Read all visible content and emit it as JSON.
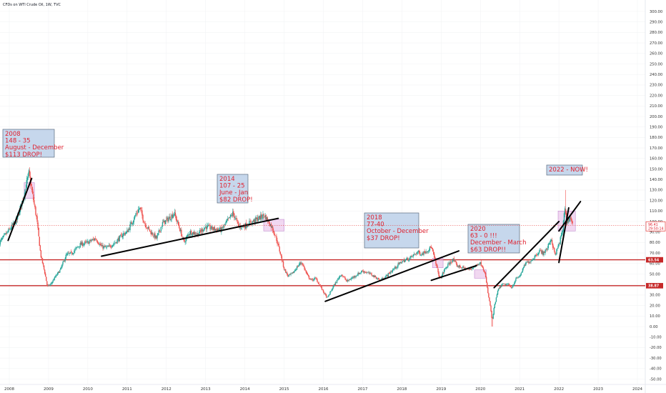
{
  "header": {
    "title": "CFDs on WTI Crude Oil, 1W, TVC"
  },
  "chart_data": {
    "type": "candlestick",
    "x_ticks": [
      "2008",
      "2009",
      "2010",
      "2011",
      "2012",
      "2013",
      "2014",
      "2015",
      "2016",
      "2017",
      "2018",
      "2019",
      "2020",
      "2021",
      "2022",
      "2023",
      "2024"
    ],
    "y_ticks": [
      "300.00",
      "290.00",
      "280.00",
      "270.00",
      "260.00",
      "250.00",
      "240.00",
      "230.00",
      "220.00",
      "210.00",
      "200.00",
      "190.00",
      "180.00",
      "170.00",
      "160.00",
      "150.00",
      "140.00",
      "130.00",
      "120.00",
      "110.00",
      "100.00",
      "90.00",
      "80.00",
      "70.00",
      "60.00",
      "50.00",
      "40.00",
      "30.00",
      "20.00",
      "10.00",
      "0.00",
      "-10.00",
      "-20.00",
      "-30.00",
      "-40.00",
      "-50.00"
    ],
    "ylim": [
      -50,
      305
    ],
    "xlim": [
      2007.72,
      2024.2
    ],
    "price_path": [
      [
        2007.75,
        80
      ],
      [
        2008.0,
        92
      ],
      [
        2008.2,
        102
      ],
      [
        2008.35,
        122
      ],
      [
        2008.5,
        146
      ],
      [
        2008.6,
        124
      ],
      [
        2008.7,
        102
      ],
      [
        2008.8,
        68
      ],
      [
        2008.9,
        52
      ],
      [
        2008.97,
        38
      ],
      [
        2009.05,
        40
      ],
      [
        2009.15,
        46
      ],
      [
        2009.3,
        54
      ],
      [
        2009.45,
        68
      ],
      [
        2009.6,
        70
      ],
      [
        2009.8,
        78
      ],
      [
        2010.0,
        80
      ],
      [
        2010.2,
        84
      ],
      [
        2010.35,
        76
      ],
      [
        2010.5,
        75
      ],
      [
        2010.7,
        80
      ],
      [
        2010.9,
        88
      ],
      [
        2011.0,
        90
      ],
      [
        2011.2,
        105
      ],
      [
        2011.32,
        113
      ],
      [
        2011.45,
        98
      ],
      [
        2011.6,
        90
      ],
      [
        2011.75,
        84
      ],
      [
        2011.9,
        98
      ],
      [
        2012.1,
        104
      ],
      [
        2012.2,
        108
      ],
      [
        2012.35,
        92
      ],
      [
        2012.45,
        80
      ],
      [
        2012.6,
        90
      ],
      [
        2012.8,
        88
      ],
      [
        2013.0,
        95
      ],
      [
        2013.2,
        93
      ],
      [
        2013.4,
        92
      ],
      [
        2013.55,
        100
      ],
      [
        2013.7,
        108
      ],
      [
        2013.85,
        95
      ],
      [
        2014.0,
        96
      ],
      [
        2014.2,
        100
      ],
      [
        2014.4,
        104
      ],
      [
        2014.5,
        106
      ],
      [
        2014.6,
        100
      ],
      [
        2014.7,
        94
      ],
      [
        2014.8,
        84
      ],
      [
        2014.9,
        70
      ],
      [
        2015.0,
        55
      ],
      [
        2015.1,
        48
      ],
      [
        2015.2,
        50
      ],
      [
        2015.4,
        60
      ],
      [
        2015.45,
        61
      ],
      [
        2015.6,
        48
      ],
      [
        2015.7,
        44
      ],
      [
        2015.8,
        46
      ],
      [
        2015.9,
        40
      ],
      [
        2016.0,
        33
      ],
      [
        2016.1,
        27
      ],
      [
        2016.25,
        38
      ],
      [
        2016.45,
        50
      ],
      [
        2016.6,
        43
      ],
      [
        2016.8,
        48
      ],
      [
        2017.0,
        53
      ],
      [
        2017.2,
        50
      ],
      [
        2017.45,
        44
      ],
      [
        2017.6,
        48
      ],
      [
        2017.8,
        55
      ],
      [
        2018.0,
        62
      ],
      [
        2018.2,
        65
      ],
      [
        2018.4,
        71
      ],
      [
        2018.5,
        69
      ],
      [
        2018.7,
        74
      ],
      [
        2018.75,
        76
      ],
      [
        2018.85,
        62
      ],
      [
        2018.97,
        45
      ],
      [
        2019.1,
        55
      ],
      [
        2019.3,
        64
      ],
      [
        2019.4,
        58
      ],
      [
        2019.55,
        56
      ],
      [
        2019.7,
        54
      ],
      [
        2019.85,
        57
      ],
      [
        2019.97,
        61
      ],
      [
        2020.05,
        58
      ],
      [
        2020.12,
        50
      ],
      [
        2020.2,
        30
      ],
      [
        2020.25,
        20
      ],
      [
        2020.3,
        5
      ],
      [
        2020.35,
        18
      ],
      [
        2020.45,
        35
      ],
      [
        2020.55,
        40
      ],
      [
        2020.7,
        40
      ],
      [
        2020.8,
        37
      ],
      [
        2020.9,
        45
      ],
      [
        2021.0,
        48
      ],
      [
        2021.15,
        60
      ],
      [
        2021.3,
        63
      ],
      [
        2021.5,
        72
      ],
      [
        2021.6,
        70
      ],
      [
        2021.7,
        74
      ],
      [
        2021.8,
        84
      ],
      [
        2021.9,
        68
      ],
      [
        2022.0,
        78
      ],
      [
        2022.1,
        92
      ],
      [
        2022.15,
        115
      ],
      [
        2022.2,
        100
      ],
      [
        2022.3,
        104
      ],
      [
        2022.35,
        96.41
      ]
    ],
    "trendlines": [
      [
        [
          2007.97,
          82
        ],
        [
          2008.57,
          141
        ]
      ],
      [
        [
          2010.35,
          67
        ],
        [
          2014.85,
          103
        ]
      ],
      [
        [
          2016.05,
          24
        ],
        [
          2019.45,
          72
        ]
      ],
      [
        [
          2018.75,
          44
        ],
        [
          2019.9,
          58
        ]
      ],
      [
        [
          2020.35,
          37
        ],
        [
          2022.0,
          100
        ]
      ],
      [
        [
          2022.0,
          61
        ],
        [
          2022.25,
          113
        ]
      ],
      [
        [
          2022.0,
          91
        ],
        [
          2022.55,
          119
        ]
      ]
    ],
    "zones": [
      [
        [
          2008.38,
          2008.64
        ],
        [
          122,
          137
        ]
      ],
      [
        [
          2014.48,
          2015.0
        ],
        [
          91,
          102
        ]
      ],
      [
        [
          2018.78,
          2019.05
        ],
        [
          56,
          65
        ]
      ],
      [
        [
          2019.85,
          2020.15
        ],
        [
          46,
          54
        ]
      ],
      [
        [
          2021.98,
          2022.42
        ],
        [
          91,
          110
        ]
      ]
    ],
    "horizontal_levels": [
      {
        "value": 63.54,
        "label": "63.54",
        "color": "#c62828"
      },
      {
        "value": 38.87,
        "label": "38.87",
        "color": "#c62828"
      }
    ],
    "current_price": {
      "value": "96.41",
      "countdown": "29:50:14",
      "color": "#e53935"
    },
    "annotations": [
      {
        "id": "2008",
        "lines": [
          "2008",
          "148 - 35",
          "August - December",
          "$113 DROP!"
        ]
      },
      {
        "id": "2014",
        "lines": [
          "2014",
          "107 - 25",
          "June - Jan",
          "$82 DROP!"
        ]
      },
      {
        "id": "2018",
        "lines": [
          "2018",
          "77-40",
          "October - December",
          "$37 DROP!"
        ]
      },
      {
        "id": "2020",
        "lines": [
          "2020",
          "63 - 0 !!!",
          "December - March",
          "$63 DROP!!"
        ]
      },
      {
        "id": "2022",
        "lines": [
          "2022 - NOW!"
        ]
      }
    ],
    "colors": {
      "up": "#26a69a",
      "down": "#ef5350",
      "annotation_fill": "#c6d7ec",
      "annotation_border": "#5b6b7e",
      "annotation_text": "#e0202e",
      "zone_fill": "#e6b8e6",
      "trendline": "#000000"
    }
  }
}
